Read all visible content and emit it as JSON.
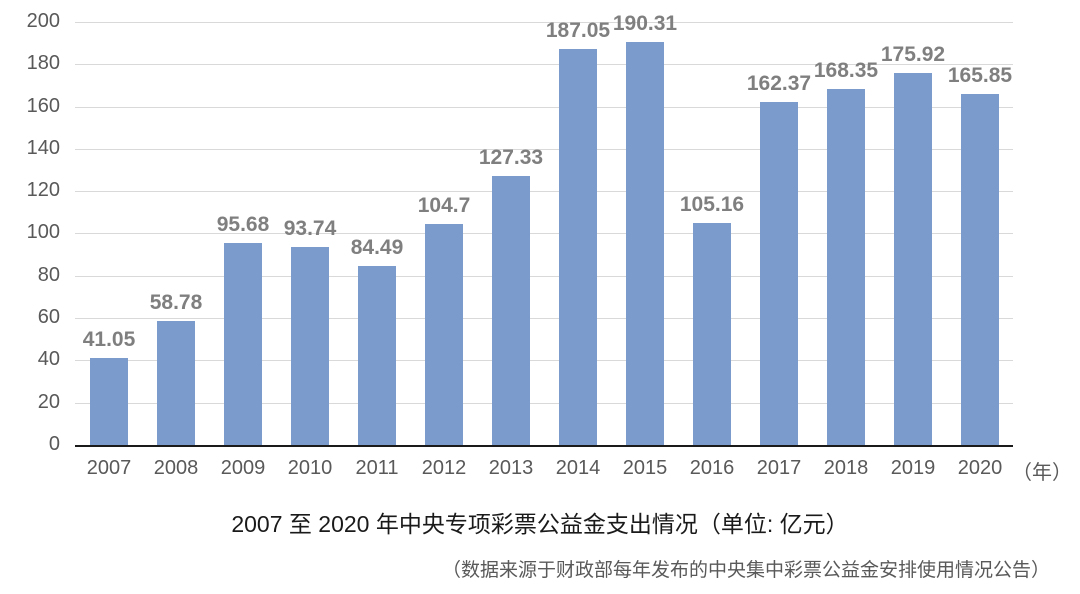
{
  "chart_data": {
    "type": "bar",
    "title": "2007至2020年中央专项彩票公益金支出情况（单位: 亿元）",
    "subtitle": "（数据来源于财政部每年发布的中央集中彩票公益金安排使用情况公告）",
    "xlabel": "（年）",
    "ylabel": "",
    "ylim": [
      0,
      200
    ],
    "yticks": [
      0,
      20,
      40,
      60,
      80,
      100,
      120,
      140,
      160,
      180,
      200
    ],
    "categories": [
      "2007",
      "2008",
      "2009",
      "2010",
      "2011",
      "2012",
      "2013",
      "2014",
      "2015",
      "2016",
      "2017",
      "2018",
      "2019",
      "2020"
    ],
    "values": [
      41.05,
      58.78,
      95.68,
      93.74,
      84.49,
      104.7,
      127.33,
      187.05,
      190.31,
      105.16,
      162.37,
      168.35,
      175.92,
      165.85
    ],
    "value_labels": [
      "41.05",
      "58.78",
      "95.68",
      "93.74",
      "84.49",
      "104.7",
      "127.33",
      "187.05",
      "190.31",
      "105.16",
      "162.37",
      "168.35",
      "175.92",
      "165.85"
    ],
    "grid": true,
    "legend": null,
    "colors": {
      "bar": "#7a9bcc",
      "grid": "#d9d9d9",
      "axis": "#1a1a1a",
      "label": "#7f7f7f",
      "tick": "#595959"
    }
  },
  "labels": {
    "x_unit": "（年）",
    "title": "2007 至 2020 年中央专项彩票公益金支出情况（单位: 亿元）",
    "source": "（数据来源于财政部每年发布的中央集中彩票公益金安排使用情况公告）"
  }
}
